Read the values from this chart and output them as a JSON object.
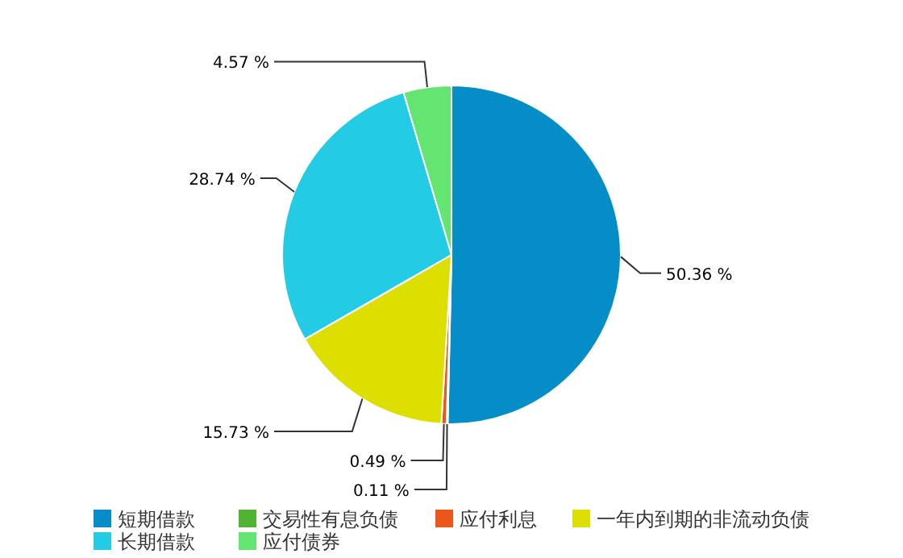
{
  "chart_data": {
    "type": "pie",
    "categories": [
      "短期借款",
      "交易性有息负债",
      "应付利息",
      "一年内到期的非流动负债",
      "长期借款",
      "应付债券"
    ],
    "values": [
      50.36,
      0.11,
      0.49,
      15.73,
      28.74,
      4.57
    ],
    "colors": [
      "#058dc7",
      "#50b432",
      "#ed561b",
      "#dddf00",
      "#24cbe5",
      "#64e572"
    ],
    "value_labels": [
      "50.36 %",
      "0.11 %",
      "0.49 %",
      "15.73 %",
      "28.74 %",
      "4.57 %"
    ],
    "legend": "bottom"
  }
}
